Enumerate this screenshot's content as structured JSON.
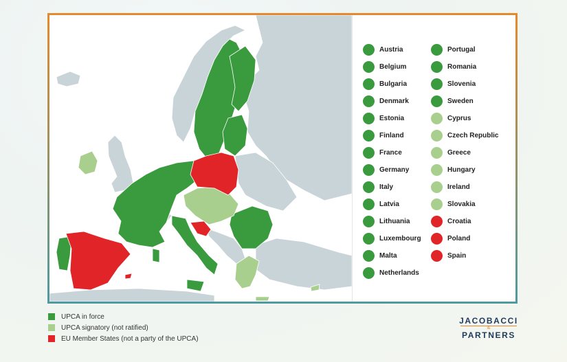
{
  "colors": {
    "in_force": "#3a9a3e",
    "signatory": "#a8cf8e",
    "not_party": "#e02428",
    "other_land": "#c9d4d8",
    "frame_top": "#e58a2c",
    "frame_bottom": "#4f9aa0"
  },
  "legend_col1": [
    {
      "label": "Austria",
      "status": "in_force"
    },
    {
      "label": "Belgium",
      "status": "in_force"
    },
    {
      "label": "Bulgaria",
      "status": "in_force"
    },
    {
      "label": "Denmark",
      "status": "in_force"
    },
    {
      "label": "Estonia",
      "status": "in_force"
    },
    {
      "label": "Finland",
      "status": "in_force"
    },
    {
      "label": "France",
      "status": "in_force"
    },
    {
      "label": "Germany",
      "status": "in_force"
    },
    {
      "label": "Italy",
      "status": "in_force"
    },
    {
      "label": "Latvia",
      "status": "in_force"
    },
    {
      "label": "Lithuania",
      "status": "in_force"
    },
    {
      "label": "Luxembourg",
      "status": "in_force"
    },
    {
      "label": "Malta",
      "status": "in_force"
    },
    {
      "label": "Netherlands",
      "status": "in_force"
    }
  ],
  "legend_col2": [
    {
      "label": "Portugal",
      "status": "in_force"
    },
    {
      "label": "Romania",
      "status": "in_force"
    },
    {
      "label": "Slovenia",
      "status": "in_force"
    },
    {
      "label": "Sweden",
      "status": "in_force"
    },
    {
      "label": "Cyprus",
      "status": "signatory"
    },
    {
      "label": "Czech Republic",
      "status": "signatory"
    },
    {
      "label": "Greece",
      "status": "signatory"
    },
    {
      "label": "Hungary",
      "status": "signatory"
    },
    {
      "label": "Ireland",
      "status": "signatory"
    },
    {
      "label": "Slovakia",
      "status": "signatory"
    },
    {
      "label": "Croatia",
      "status": "not_party"
    },
    {
      "label": "Poland",
      "status": "not_party"
    },
    {
      "label": "Spain",
      "status": "not_party"
    }
  ],
  "key": [
    {
      "label": "UPCA in force",
      "status": "in_force"
    },
    {
      "label": "UPCA signatory (not ratified)",
      "status": "signatory"
    },
    {
      "label": "EU Member States (not a party of the UPCA)",
      "status": "not_party"
    }
  ],
  "brand": {
    "line1": "JACOBACCI",
    "amp": "&",
    "line2": "PARTNERS"
  }
}
